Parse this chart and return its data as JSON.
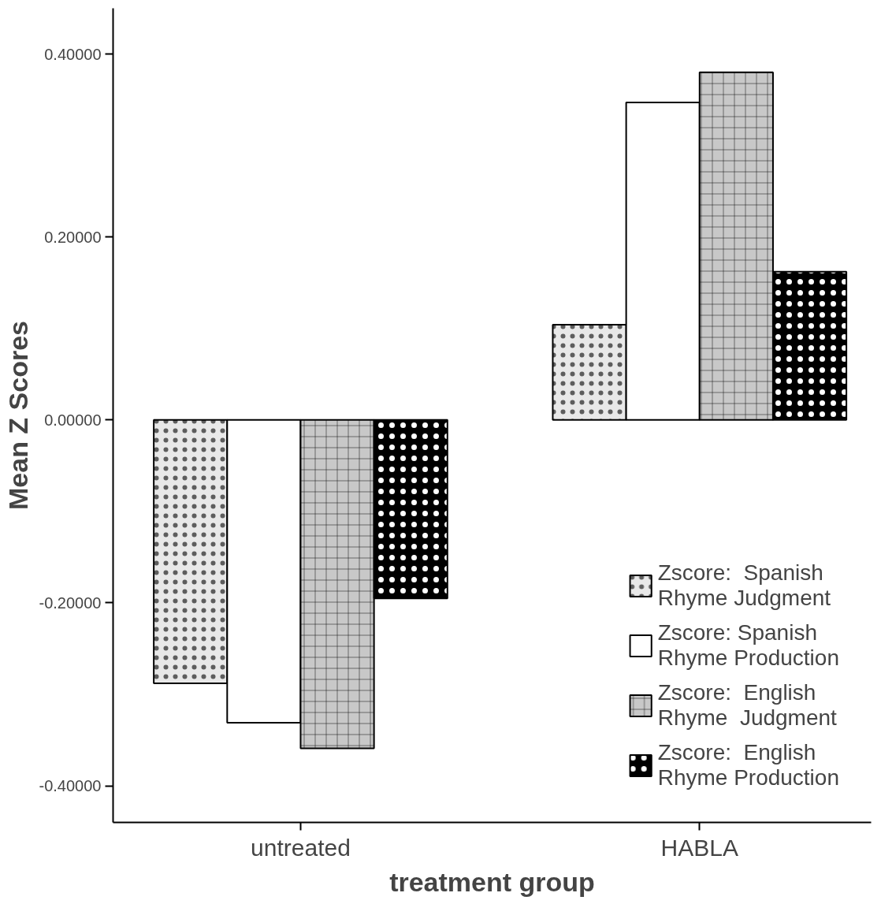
{
  "chart_data": {
    "type": "bar",
    "xlabel": "treatment group",
    "ylabel": "Mean Z Scores",
    "categories": [
      "untreated",
      "HABLA"
    ],
    "series": [
      {
        "name": "Zscore:  Spanish\nRhyme Judgment",
        "color": "#e8e8e8",
        "values": [
          -0.288,
          0.104
        ]
      },
      {
        "name": "Zscore: Spanish\nRhyme Production",
        "color": "#ffffff",
        "values": [
          -0.331,
          0.347
        ]
      },
      {
        "name": "Zscore:  English\nRhyme  Judgment",
        "color": "#c8c8c8",
        "values": [
          -0.359,
          0.38
        ]
      },
      {
        "name": "Zscore:  English\nRhyme Production",
        "color": "#000000",
        "values": [
          -0.195,
          0.162
        ]
      }
    ],
    "ylim": [
      -0.44,
      0.45
    ],
    "yticks": [
      {
        "value": -0.4,
        "label": "-0.40000"
      },
      {
        "value": -0.2,
        "label": "-0.20000"
      },
      {
        "value": 0,
        "label": "0.00000"
      },
      {
        "value": 0.2,
        "label": "0.20000"
      },
      {
        "value": 0.4,
        "label": "0.40000"
      }
    ],
    "grid": false,
    "legend": "bottom right"
  }
}
